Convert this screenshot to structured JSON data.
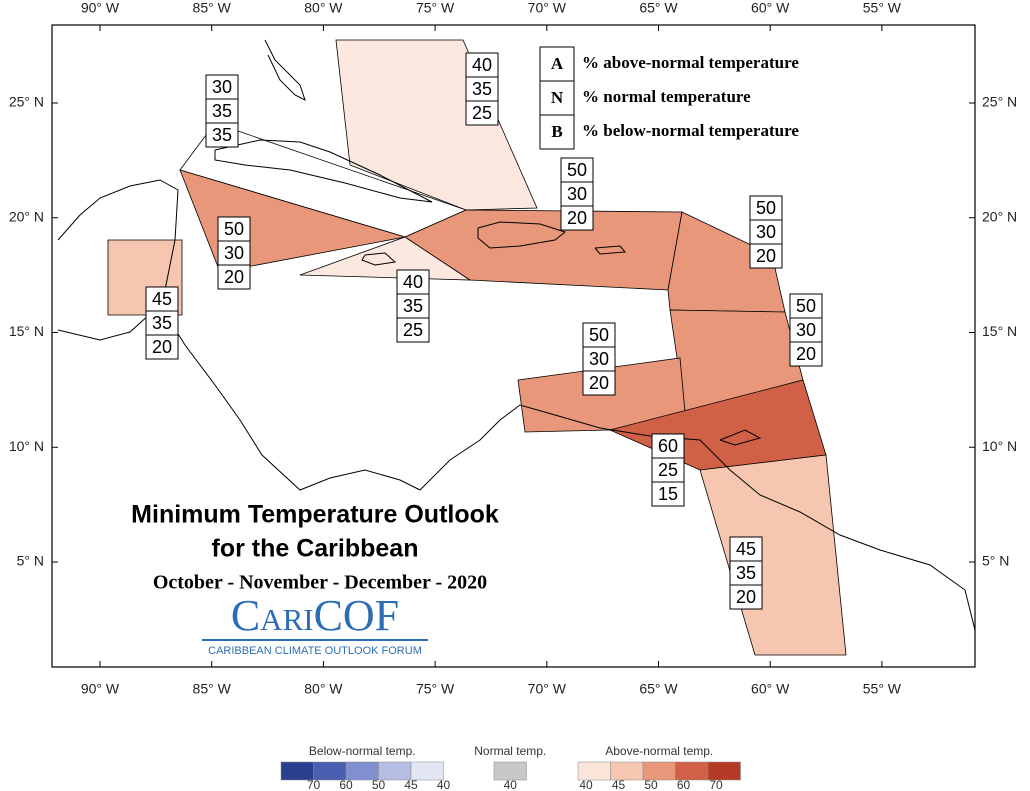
{
  "title": "Minimum Temperature Outlook",
  "title_line2": "for the Caribbean",
  "subtitle": "October - November - December - 2020",
  "logo": {
    "name": "CariCOF",
    "tagline": "CARIBBEAN CLIMATE OUTLOOK FORUM"
  },
  "lon_ticks": [
    {
      "value": -90,
      "label": "90° W"
    },
    {
      "value": -85,
      "label": "85° W"
    },
    {
      "value": -80,
      "label": "80° W"
    },
    {
      "value": -75,
      "label": "75° W"
    },
    {
      "value": -70,
      "label": "70° W"
    },
    {
      "value": -65,
      "label": "65° W"
    },
    {
      "value": -60,
      "label": "60° W"
    },
    {
      "value": -55,
      "label": "55° W"
    }
  ],
  "lat_ticks": [
    {
      "value": 5,
      "label": "5° N"
    },
    {
      "value": 10,
      "label": "10° N"
    },
    {
      "value": 15,
      "label": "15° N"
    },
    {
      "value": 20,
      "label": "20° N"
    },
    {
      "value": 25,
      "label": "25° N"
    }
  ],
  "legend": [
    {
      "letter": "A",
      "text": "% above-normal temperature"
    },
    {
      "letter": "N",
      "text": "% normal temperature"
    },
    {
      "letter": "B",
      "text": "% below-normal temperature"
    }
  ],
  "regions": [
    {
      "A": 40,
      "N": 35,
      "B": 25,
      "color": "#fce8df"
    },
    {
      "A": 30,
      "N": 35,
      "B": 35,
      "color": "#ffffff"
    },
    {
      "A": 50,
      "N": 30,
      "B": 20,
      "color": "#e8977a"
    },
    {
      "A": 40,
      "N": 35,
      "B": 25,
      "color": "#fce8df"
    },
    {
      "A": 50,
      "N": 30,
      "B": 20,
      "color": "#e8977a"
    },
    {
      "A": 50,
      "N": 30,
      "B": 20,
      "color": "#e8977a"
    },
    {
      "A": 50,
      "N": 30,
      "B": 20,
      "color": "#e8977a"
    },
    {
      "A": 50,
      "N": 30,
      "B": 20,
      "color": "#e8977a"
    },
    {
      "A": 60,
      "N": 25,
      "B": 15,
      "color": "#d06046"
    },
    {
      "A": 45,
      "N": 35,
      "B": 20,
      "color": "#f6c6b1"
    },
    {
      "A": 45,
      "N": 35,
      "B": 20,
      "color": "#f6c6b1"
    }
  ],
  "colorbar": [
    {
      "label": "Below-normal temp.",
      "ticks": [
        70,
        60,
        50,
        45,
        40
      ],
      "colors": [
        "#2b3f8f",
        "#4b5fb0",
        "#7f8fcf",
        "#b5bde3",
        "#e2e6f5"
      ]
    },
    {
      "label": "Normal temp.",
      "ticks": [
        40
      ],
      "colors": [
        "#c8c8c8"
      ]
    },
    {
      "label": "Above-normal temp.",
      "ticks": [
        40,
        45,
        50,
        60,
        70
      ],
      "colors": [
        "#fbe5da",
        "#f6c6b1",
        "#e8977a",
        "#d06046",
        "#b53a28"
      ]
    }
  ]
}
